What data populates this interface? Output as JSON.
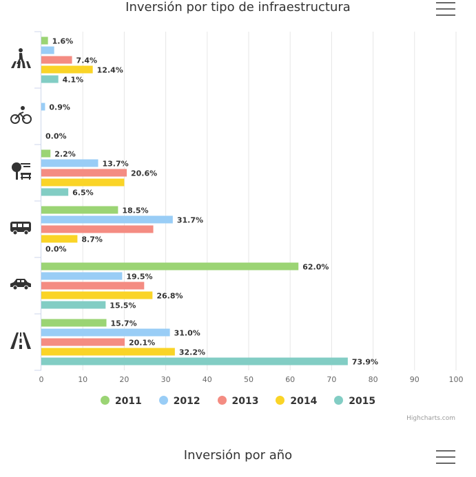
{
  "header": {
    "title": "Inversión por tipo de infraestructura",
    "menu_icon": "hamburger-menu-icon"
  },
  "footer": {
    "next_title": "Inversión por año",
    "credits": "Highcharts.com"
  },
  "colors": {
    "grid": "#e6e6e6",
    "axis_label": "#666666",
    "data_label": "#333333"
  },
  "chart_data": {
    "type": "bar",
    "orientation": "horizontal",
    "title": "Inversión por tipo de infraestructura",
    "categories": [
      "pedestrian-icon",
      "bicycle-icon",
      "public-space-icon",
      "bus-icon",
      "car-icon",
      "highway-icon"
    ],
    "xlim": [
      0,
      100
    ],
    "ticks": [
      0,
      10,
      20,
      30,
      40,
      50,
      60,
      70,
      80,
      90,
      100
    ],
    "grid": true,
    "legend_position": "bottom-center",
    "series": [
      {
        "name": "2011",
        "color": "#9bd474",
        "values": [
          1.6,
          0,
          2.2,
          18.5,
          62.0,
          15.7
        ],
        "labels": [
          "1.6%",
          "",
          "2.2%",
          "18.5%",
          "62.0%",
          "15.7%"
        ]
      },
      {
        "name": "2012",
        "color": "#99cdf6",
        "values": [
          3.1,
          0.9,
          13.7,
          31.7,
          19.5,
          31.0
        ],
        "labels": [
          "",
          "0.9%",
          "13.7%",
          "31.7%",
          "19.5%",
          "31.0%"
        ]
      },
      {
        "name": "2013",
        "color": "#f48c82",
        "values": [
          7.4,
          0,
          20.6,
          27.0,
          24.8,
          20.1
        ],
        "labels": [
          "7.4%",
          "",
          "20.6%",
          "",
          "",
          "20.1%"
        ]
      },
      {
        "name": "2014",
        "color": "#fad427",
        "values": [
          12.4,
          0,
          20.0,
          8.7,
          26.8,
          32.2
        ],
        "labels": [
          "12.4%",
          "",
          "",
          "8.7%",
          "26.8%",
          "32.2%"
        ]
      },
      {
        "name": "2015",
        "color": "#82cdc4",
        "values": [
          4.1,
          0.0,
          6.5,
          0.0,
          15.5,
          73.9
        ],
        "labels": [
          "4.1%",
          "0.0%",
          "6.5%",
          "0.0%",
          "15.5%",
          "73.9%"
        ]
      }
    ]
  }
}
